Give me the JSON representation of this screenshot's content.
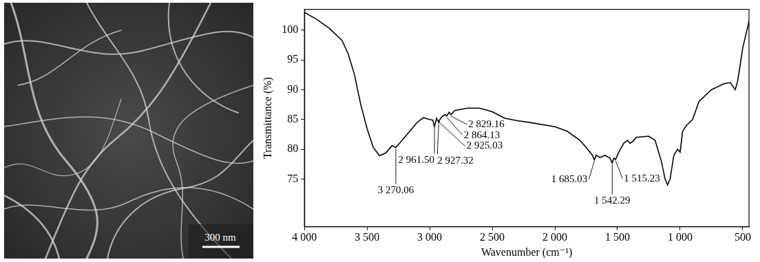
{
  "image": {
    "scale_bar": "300 nm"
  },
  "chart_data": {
    "type": "line",
    "x_label": "Wavenumber (cm⁻¹)",
    "y_label": "Transmittance (%)",
    "xlim": [
      4000,
      450
    ],
    "ylim": [
      67,
      103.5
    ],
    "xticks": [
      {
        "value": 4000,
        "label": "4 000"
      },
      {
        "value": 3500,
        "label": "3 500"
      },
      {
        "value": 3000,
        "label": "3 000"
      },
      {
        "value": 2500,
        "label": "2 500"
      },
      {
        "value": 2000,
        "label": "2 000"
      },
      {
        "value": 1500,
        "label": "1 500"
      },
      {
        "value": 1000,
        "label": "1 000"
      },
      500
    ],
    "yticks": [
      75,
      80,
      85,
      90,
      95,
      100
    ],
    "grid": false,
    "color": "#000000",
    "x": [
      4000,
      3900,
      3800,
      3700,
      3650,
      3600,
      3550,
      3500,
      3450,
      3400,
      3350,
      3300,
      3270.06,
      3200,
      3100,
      3050,
      3000,
      2975,
      2961.5,
      2945,
      2927.32,
      2925.03,
      2900,
      2875,
      2864.13,
      2845,
      2829.16,
      2800,
      2700,
      2600,
      2500,
      2400,
      2300,
      2200,
      2000,
      1900,
      1800,
      1750,
      1700,
      1685.03,
      1670,
      1640,
      1600,
      1560,
      1542.29,
      1530,
      1515.23,
      1490,
      1450,
      1420,
      1400,
      1380,
      1350,
      1250,
      1200,
      1150,
      1120,
      1100,
      1080,
      1050,
      1020,
      1000,
      980,
      950,
      900,
      850,
      750,
      650,
      600,
      560,
      540,
      500,
      450
    ],
    "values": [
      103,
      101.8,
      100.3,
      98.3,
      96,
      92.5,
      87.5,
      83.5,
      80.3,
      78.9,
      79.4,
      80.6,
      80.3,
      82,
      84.5,
      85.3,
      85,
      84.9,
      83.8,
      85.2,
      84.5,
      84.8,
      85.5,
      85.8,
      85.6,
      86.2,
      85.8,
      86.5,
      86.9,
      86.9,
      86.3,
      85.2,
      84.8,
      84.5,
      83.8,
      83,
      81.5,
      80.3,
      79,
      78.2,
      79,
      78.6,
      79,
      78.5,
      77.7,
      78.5,
      78.3,
      79.5,
      81,
      81.5,
      81,
      81.3,
      82,
      82.2,
      81.5,
      78,
      75,
      74,
      75,
      79,
      80,
      79.5,
      83,
      84,
      85,
      88,
      90,
      91,
      91.2,
      90,
      91.5,
      97,
      101.5
    ],
    "annotations": [
      {
        "x": 3270.06,
        "label": "3 270.06"
      },
      {
        "x": 2961.5,
        "label": "2 961.50"
      },
      {
        "x": 2927.32,
        "label": "2 927.32"
      },
      {
        "x": 2925.03,
        "label": "2 925.03"
      },
      {
        "x": 2864.13,
        "label": "2 864.13"
      },
      {
        "x": 2829.16,
        "label": "2 829.16"
      },
      {
        "x": 1685.03,
        "label": "1 685.03"
      },
      {
        "x": 1542.29,
        "label": "1 542.29"
      },
      {
        "x": 1515.23,
        "label": "1 515.23"
      }
    ]
  }
}
